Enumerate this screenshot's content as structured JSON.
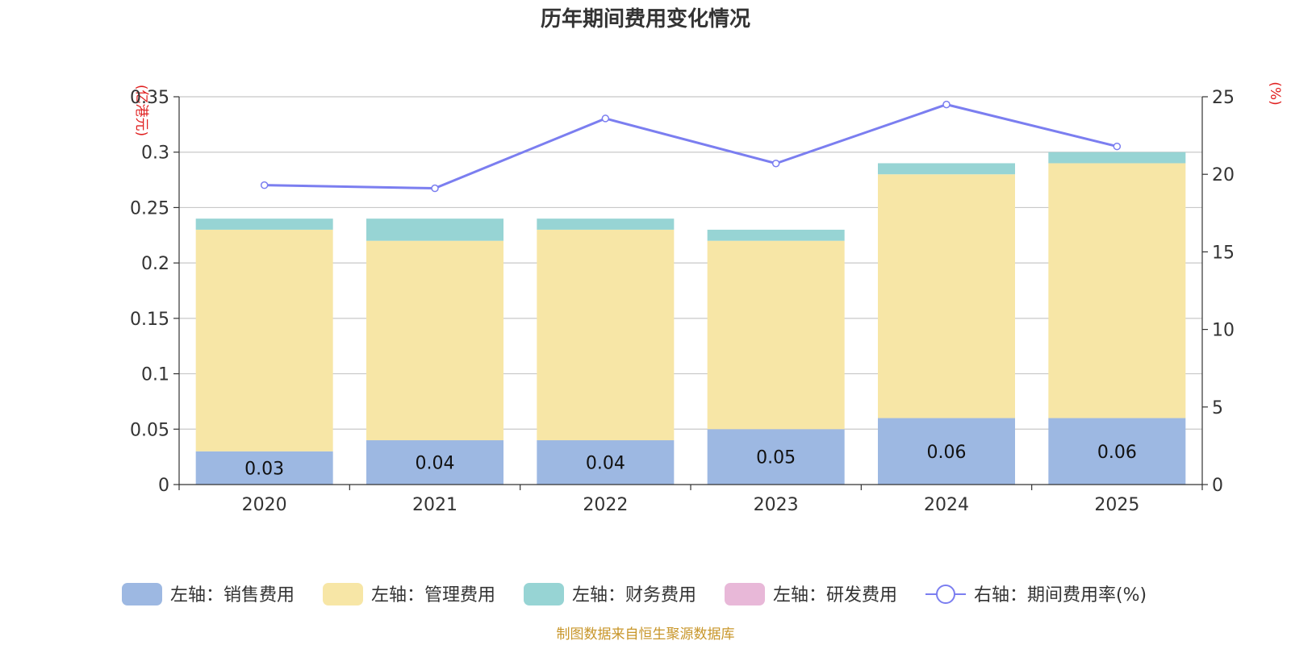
{
  "chart_data": {
    "type": "bar",
    "stacked": true,
    "title": "历年期间费用变化情况",
    "categories": [
      "2020",
      "2021",
      "2022",
      "2023",
      "2024",
      "2025"
    ],
    "y_left": {
      "unit_label": "(亿港元)",
      "ylim": [
        0,
        0.35
      ],
      "ticks": [
        "0",
        "0.05",
        "0.1",
        "0.15",
        "0.2",
        "0.25",
        "0.3",
        "0.35"
      ]
    },
    "y_right": {
      "unit_label": "(%)",
      "ylim": [
        0,
        25
      ],
      "ticks": [
        "0",
        "5",
        "10",
        "15",
        "20",
        "25"
      ]
    },
    "series": [
      {
        "name": "左轴：销售费用",
        "axis": "left",
        "kind": "bar",
        "color": "#9db8e2",
        "values": [
          0.03,
          0.04,
          0.04,
          0.05,
          0.06,
          0.06
        ],
        "labels": [
          "0.03",
          "0.04",
          "0.04",
          "0.05",
          "0.06",
          "0.06"
        ]
      },
      {
        "name": "左轴：管理费用",
        "axis": "left",
        "kind": "bar",
        "color": "#f7e6a6",
        "values": [
          0.2,
          0.18,
          0.19,
          0.17,
          0.22,
          0.23
        ]
      },
      {
        "name": "左轴：财务费用",
        "axis": "left",
        "kind": "bar",
        "color": "#97d4d4",
        "values": [
          0.01,
          0.02,
          0.01,
          0.01,
          0.01,
          0.01
        ]
      },
      {
        "name": "左轴：研发费用",
        "axis": "left",
        "kind": "bar",
        "color": "#e8b8d8",
        "values": [
          0,
          0,
          0,
          0,
          0,
          0
        ]
      },
      {
        "name": "右轴：期间费用率(%)",
        "axis": "right",
        "kind": "line",
        "color": "#7b7ef0",
        "values": [
          19.3,
          19.1,
          23.6,
          20.7,
          24.5,
          21.8
        ]
      }
    ],
    "legend_position": "bottom",
    "grid": true
  },
  "source_note": "制图数据来自恒生聚源数据库"
}
